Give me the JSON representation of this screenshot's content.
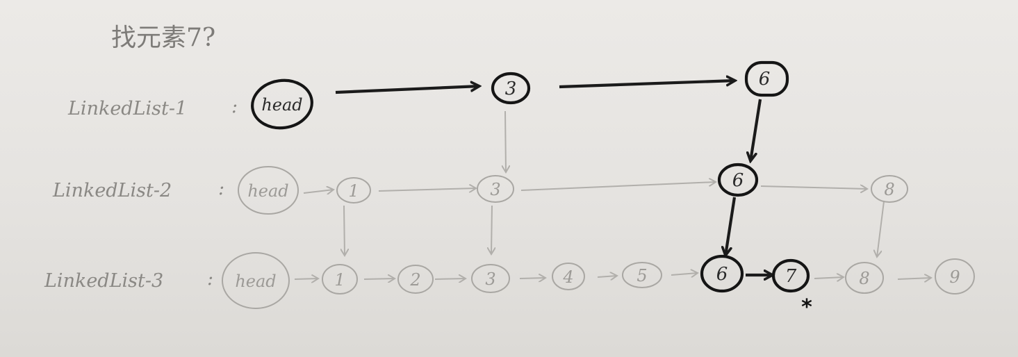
{
  "title": "找元素7?",
  "lists": [
    {
      "label": "LinkedList-1",
      "separator": ":",
      "nodes": [
        "head",
        "3",
        "6"
      ]
    },
    {
      "label": "LinkedList-2",
      "separator": ":",
      "nodes": [
        "head",
        "1",
        "3",
        "6",
        "8"
      ]
    },
    {
      "label": "LinkedList-3",
      "separator": ":",
      "nodes": [
        "head",
        "1",
        "2",
        "3",
        "4",
        "5",
        "6",
        "7",
        "8",
        "9"
      ]
    }
  ],
  "search_path": [
    "head",
    "3",
    "6",
    "6",
    "6",
    "7"
  ],
  "target_mark": "*",
  "colors": {
    "ink_dark": "#151515",
    "ink_light": "#a9a7a3",
    "paper": "#e7e5e2"
  }
}
